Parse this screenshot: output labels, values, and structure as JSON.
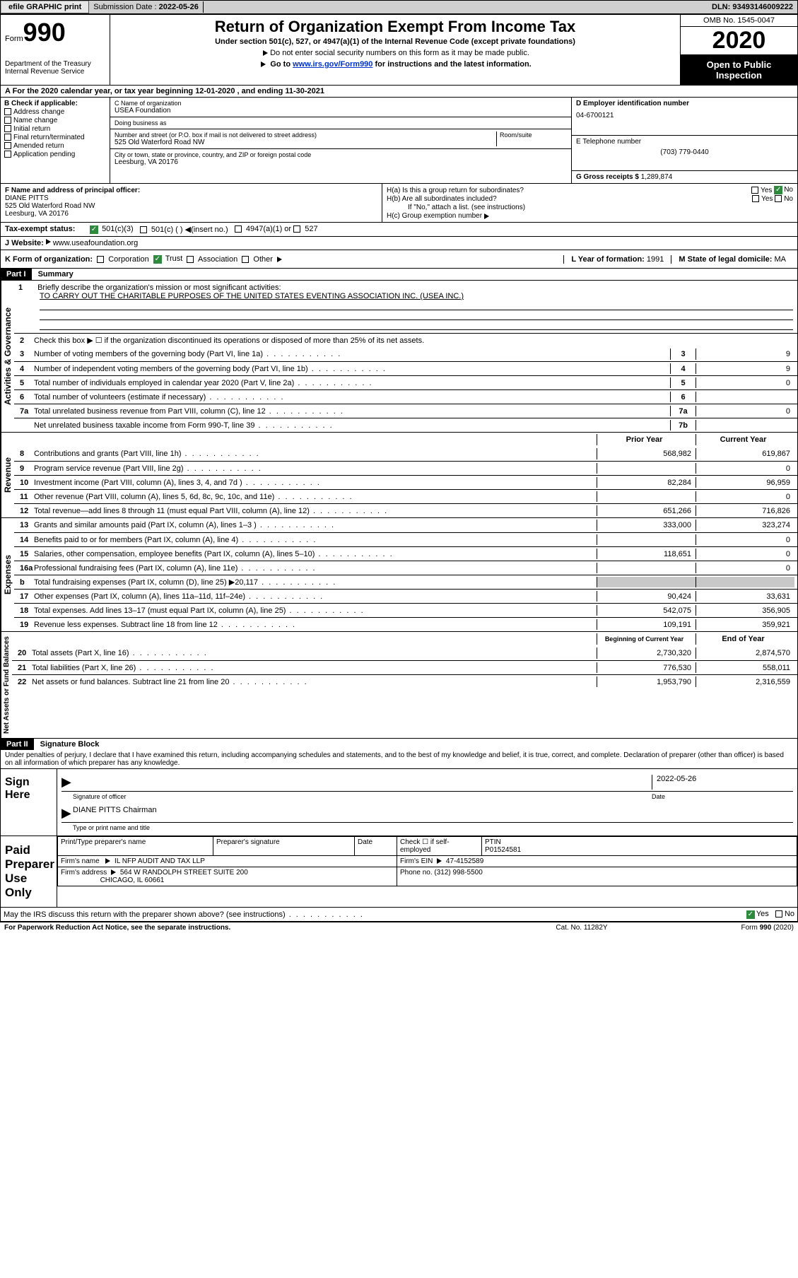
{
  "topbar": {
    "efile": "efile GRAPHIC print",
    "submission_label": "Submission Date :",
    "submission_date": "2022-05-26",
    "dln_label": "DLN:",
    "dln": "93493146009222"
  },
  "header": {
    "form_word": "Form",
    "form_num": "990",
    "dept": "Department of the Treasury\nInternal Revenue Service",
    "title": "Return of Organization Exempt From Income Tax",
    "subtitle": "Under section 501(c), 527, or 4947(a)(1) of the Internal Revenue Code (except private foundations)",
    "note1": "Do not enter social security numbers on this form as it may be made public.",
    "note2_pre": "Go to ",
    "note2_link": "www.irs.gov/Form990",
    "note2_post": " for instructions and the latest information.",
    "omb": "OMB No. 1545-0047",
    "year": "2020",
    "inspect": "Open to Public Inspection"
  },
  "row_a": "A For the 2020 calendar year, or tax year beginning 12-01-2020    , and ending 11-30-2021",
  "col_b": {
    "heading": "B Check if applicable:",
    "items": [
      "Address change",
      "Name change",
      "Initial return",
      "Final return/terminated",
      "Amended return",
      "Application pending"
    ]
  },
  "col_c": {
    "name_lbl": "C Name of organization",
    "name": "USEA Foundation",
    "dba_lbl": "Doing business as",
    "dba": "",
    "street_lbl": "Number and street (or P.O. box if mail is not delivered to street address)",
    "street": "525 Old Waterford Road NW",
    "room_lbl": "Room/suite",
    "city_lbl": "City or town, state or province, country, and ZIP or foreign postal code",
    "city": "Leesburg, VA  20176"
  },
  "col_d": {
    "ein_lbl": "D Employer identification number",
    "ein": "04-6700121",
    "tel_lbl": "E Telephone number",
    "tel": "(703) 779-0440",
    "gross_lbl": "G Gross receipts $",
    "gross": "1,289,874"
  },
  "row_f": {
    "lbl": "F  Name and address of principal officer:",
    "name": "DIANE PITTS",
    "addr1": "525 Old Waterford Road NW",
    "addr2": "Leesburg, VA  20176"
  },
  "row_h": {
    "a_lbl": "H(a)  Is this a group return for subordinates?",
    "b_lbl": "H(b)  Are all subordinates included?",
    "b_note": "If \"No,\" attach a list. (see instructions)",
    "c_lbl": "H(c)  Group exemption number"
  },
  "row_i": {
    "lbl": "Tax-exempt status:",
    "opts": [
      "501(c)(3)",
      "501(c) (  )",
      "(insert no.)",
      "4947(a)(1) or",
      "527"
    ]
  },
  "row_j": {
    "lbl": "J  Website:",
    "val": "www.useafoundation.org"
  },
  "row_k": {
    "lbl": "K Form of organization:",
    "opts": [
      "Corporation",
      "Trust",
      "Association",
      "Other"
    ],
    "l_lbl": "L Year of formation:",
    "l_val": "1991",
    "m_lbl": "M State of legal domicile:",
    "m_val": "MA"
  },
  "part1": {
    "hdr": "Part I",
    "title": "Summary",
    "side_gov": "Activities & Governance",
    "line1": "Briefly describe the organization's mission or most significant activities:",
    "mission": "TO CARRY OUT THE CHARITABLE PURPOSES OF THE UNITED STATES EVENTING ASSOCIATION INC. (USEA INC.)",
    "line2": "Check this box ▶ ☐  if the organization discontinued its operations or disposed of more than 25% of its net assets.",
    "lines_gov": [
      {
        "n": "3",
        "d": "Number of voting members of the governing body (Part VI, line 1a)",
        "box": "3",
        "v": "9"
      },
      {
        "n": "4",
        "d": "Number of independent voting members of the governing body (Part VI, line 1b)",
        "box": "4",
        "v": "9"
      },
      {
        "n": "5",
        "d": "Total number of individuals employed in calendar year 2020 (Part V, line 2a)",
        "box": "5",
        "v": "0"
      },
      {
        "n": "6",
        "d": "Total number of volunteers (estimate if necessary)",
        "box": "6",
        "v": ""
      },
      {
        "n": "7a",
        "d": "Total unrelated business revenue from Part VIII, column (C), line 12",
        "box": "7a",
        "v": "0"
      },
      {
        "n": "",
        "d": "Net unrelated business taxable income from Form 990-T, line 39",
        "box": "7b",
        "v": ""
      }
    ],
    "side_rev": "Revenue",
    "hdr_prior": "Prior Year",
    "hdr_curr": "Current Year",
    "lines_rev": [
      {
        "n": "8",
        "d": "Contributions and grants (Part VIII, line 1h)",
        "p": "568,982",
        "c": "619,867"
      },
      {
        "n": "9",
        "d": "Program service revenue (Part VIII, line 2g)",
        "p": "",
        "c": "0"
      },
      {
        "n": "10",
        "d": "Investment income (Part VIII, column (A), lines 3, 4, and 7d )",
        "p": "82,284",
        "c": "96,959"
      },
      {
        "n": "11",
        "d": "Other revenue (Part VIII, column (A), lines 5, 6d, 8c, 9c, 10c, and 11e)",
        "p": "",
        "c": "0"
      },
      {
        "n": "12",
        "d": "Total revenue—add lines 8 through 11 (must equal Part VIII, column (A), line 12)",
        "p": "651,266",
        "c": "716,826"
      }
    ],
    "side_exp": "Expenses",
    "lines_exp": [
      {
        "n": "13",
        "d": "Grants and similar amounts paid (Part IX, column (A), lines 1–3 )",
        "p": "333,000",
        "c": "323,274"
      },
      {
        "n": "14",
        "d": "Benefits paid to or for members (Part IX, column (A), line 4)",
        "p": "",
        "c": "0"
      },
      {
        "n": "15",
        "d": "Salaries, other compensation, employee benefits (Part IX, column (A), lines 5–10)",
        "p": "118,651",
        "c": "0"
      },
      {
        "n": "16a",
        "d": "Professional fundraising fees (Part IX, column (A), line 11e)",
        "p": "",
        "c": "0"
      },
      {
        "n": "b",
        "d": "Total fundraising expenses (Part IX, column (D), line 25) ▶20,117",
        "p": "grey",
        "c": "grey"
      },
      {
        "n": "17",
        "d": "Other expenses (Part IX, column (A), lines 11a–11d, 11f–24e)",
        "p": "90,424",
        "c": "33,631"
      },
      {
        "n": "18",
        "d": "Total expenses. Add lines 13–17 (must equal Part IX, column (A), line 25)",
        "p": "542,075",
        "c": "356,905"
      },
      {
        "n": "19",
        "d": "Revenue less expenses. Subtract line 18 from line 12",
        "p": "109,191",
        "c": "359,921"
      }
    ],
    "side_net": "Net Assets or Fund Balances",
    "hdr_beg": "Beginning of Current Year",
    "hdr_end": "End of Year",
    "lines_net": [
      {
        "n": "20",
        "d": "Total assets (Part X, line 16)",
        "p": "2,730,320",
        "c": "2,874,570"
      },
      {
        "n": "21",
        "d": "Total liabilities (Part X, line 26)",
        "p": "776,530",
        "c": "558,011"
      },
      {
        "n": "22",
        "d": "Net assets or fund balances. Subtract line 21 from line 20",
        "p": "1,953,790",
        "c": "2,316,559"
      }
    ]
  },
  "part2": {
    "hdr": "Part II",
    "title": "Signature Block",
    "perjury": "Under penalties of perjury, I declare that I have examined this return, including accompanying schedules and statements, and to the best of my knowledge and belief, it is true, correct, and complete. Declaration of preparer (other than officer) is based on all information of which preparer has any knowledge.",
    "sign_here": "Sign Here",
    "sig_officer": "Signature of officer",
    "sig_date_lbl": "Date",
    "sig_date": "2022-05-26",
    "officer_name": "DIANE PITTS Chairman",
    "officer_type": "Type or print name and title",
    "paid": "Paid Preparer Use Only",
    "prep_name_lbl": "Print/Type preparer's name",
    "prep_sig_lbl": "Preparer's signature",
    "prep_date_lbl": "Date",
    "prep_check": "Check ☐ if self-employed",
    "ptin_lbl": "PTIN",
    "ptin": "P01524581",
    "firm_name_lbl": "Firm's name",
    "firm_name": "IL NFP AUDIT AND TAX LLP",
    "firm_ein_lbl": "Firm's EIN",
    "firm_ein": "47-4152589",
    "firm_addr_lbl": "Firm's address",
    "firm_addr": "564 W RANDOLPH STREET SUITE 200",
    "firm_city": "CHICAGO, IL  60661",
    "phone_lbl": "Phone no.",
    "phone": "(312) 998-5500",
    "discuss": "May the IRS discuss this return with the preparer shown above? (see instructions)"
  },
  "footer": {
    "left": "For Paperwork Reduction Act Notice, see the separate instructions.",
    "mid": "Cat. No. 11282Y",
    "right": "Form 990 (2020)"
  }
}
